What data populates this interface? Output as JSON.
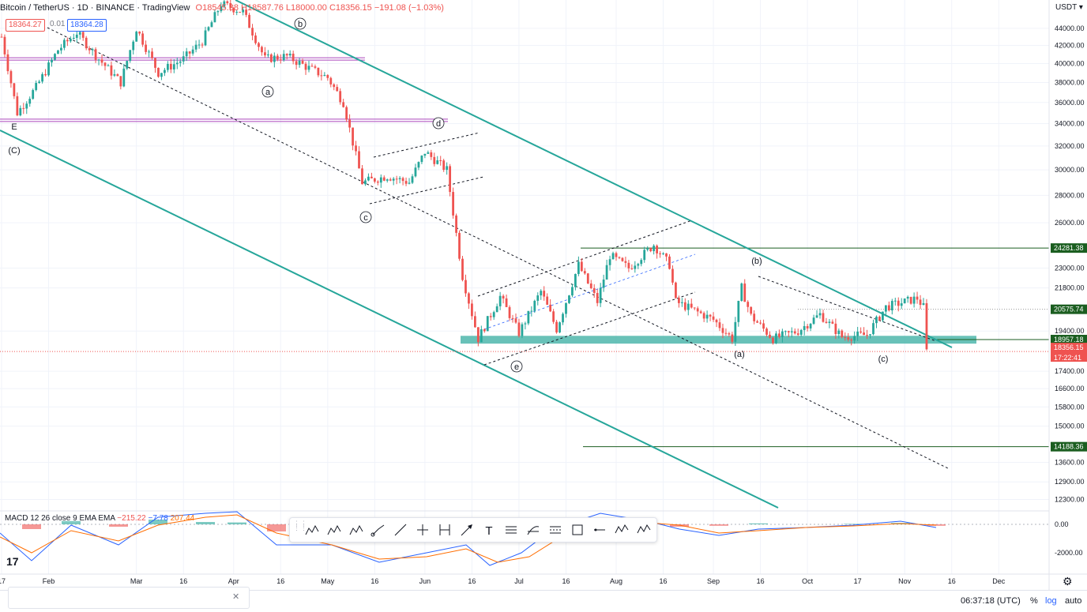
{
  "header": {
    "symbol": "Bitcoin / TetherUS · 1D · BINANCE · TradingView",
    "ohlc": "O18545.38 H18587.76 L18000.00 C18356.15 −191.08 (−1.03%)",
    "bid": "18364.27",
    "spread": "0.01",
    "ask": "18364.28"
  },
  "price_axis": {
    "currency": "USDT",
    "ticks": [
      "44000.00",
      "42000.00",
      "40000.00",
      "38000.00",
      "36000.00",
      "34000.00",
      "32000.00",
      "30000.00",
      "28000.00",
      "26000.00",
      "23000.00",
      "21800.00",
      "19400.00",
      "17400.00",
      "16600.00",
      "15800.00",
      "15000.00",
      "13600.00",
      "12900.00",
      "12300.00"
    ],
    "labels": [
      {
        "text": "24281.38",
        "color": "#1b5e20"
      },
      {
        "text": "20575.74",
        "color": "#1b5e20"
      },
      {
        "text": "18957.18",
        "color": "#1b5e20"
      },
      {
        "text": "18356.15",
        "color": "#ef5350"
      },
      {
        "text": "17:22:41",
        "color": "#ef5350"
      },
      {
        "text": "14188.36",
        "color": "#1b5e20"
      }
    ]
  },
  "macd_axis": {
    "ticks": [
      "0.00",
      "-2000.00"
    ]
  },
  "time_axis": {
    "labels": [
      "17",
      "Feb",
      "Mar",
      "16",
      "Apr",
      "16",
      "May",
      "16",
      "Jun",
      "16",
      "Jul",
      "16",
      "Aug",
      "16",
      "Sep",
      "16",
      "Oct",
      "17",
      "Nov",
      "16",
      "Dec"
    ]
  },
  "wave_labels": [
    "E",
    "(C)",
    "b",
    "a",
    "d",
    "c",
    "e",
    "(b)",
    "(a)",
    "(c)"
  ],
  "macd": {
    "title": "MACD 12 26 close 9 EMA EMA",
    "v1": "−215.22",
    "v2": "−7.78",
    "v3": "207.44"
  },
  "footer": {
    "time": "06:37:18 (UTC)",
    "percent": "%",
    "log": "log",
    "auto": "auto"
  },
  "toolbar": {
    "tools": [
      "pattern-ae-icon",
      "pattern-ac-icon",
      "pattern-15-icon",
      "trend-angle-icon",
      "trend-line-icon",
      "horizontal-ray-icon",
      "price-range-icon",
      "arrow-icon",
      "text-icon",
      "parallel-channel-icon",
      "fib-icon",
      "regression-icon",
      "rectangle-icon",
      "horizontal-line-icon",
      "pattern-wz-icon",
      "pattern-wy-icon"
    ]
  },
  "chart_data": {
    "type": "candlestick",
    "title": "Bitcoin / TetherUS · 1D · BINANCE",
    "ylabel": "USDT",
    "y_scale": "log",
    "ylim": [
      11900,
      47500
    ],
    "x_range": [
      "2022-01-17",
      "2022-12-10"
    ],
    "close_path": [
      [
        "2022-01-17",
        43000
      ],
      [
        "2022-01-22",
        35000
      ],
      [
        "2022-01-28",
        37500
      ],
      [
        "2022-02-04",
        41500
      ],
      [
        "2022-02-10",
        43500
      ],
      [
        "2022-02-17",
        40500
      ],
      [
        "2022-02-24",
        38000
      ],
      [
        "2022-03-01",
        44000
      ],
      [
        "2022-03-08",
        39000
      ],
      [
        "2022-03-16",
        40500
      ],
      [
        "2022-03-22",
        42500
      ],
      [
        "2022-03-28",
        47000
      ],
      [
        "2022-04-04",
        46000
      ],
      [
        "2022-04-11",
        40500
      ],
      [
        "2022-04-18",
        40800
      ],
      [
        "2022-04-25",
        39500
      ],
      [
        "2022-05-01",
        38500
      ],
      [
        "2022-05-06",
        36000
      ],
      [
        "2022-05-12",
        29000
      ],
      [
        "2022-05-20",
        29500
      ],
      [
        "2022-05-27",
        29000
      ],
      [
        "2022-06-01",
        31500
      ],
      [
        "2022-06-08",
        30000
      ],
      [
        "2022-06-13",
        22500
      ],
      [
        "2022-06-18",
        19000
      ],
      [
        "2022-06-25",
        21300
      ],
      [
        "2022-07-01",
        19300
      ],
      [
        "2022-07-08",
        21600
      ],
      [
        "2022-07-13",
        19500
      ],
      [
        "2022-07-20",
        23200
      ],
      [
        "2022-07-26",
        21000
      ],
      [
        "2022-07-30",
        23800
      ],
      [
        "2022-08-05",
        23000
      ],
      [
        "2022-08-13",
        24500
      ],
      [
        "2022-08-18",
        23200
      ],
      [
        "2022-08-20",
        21000
      ],
      [
        "2022-08-26",
        20500
      ],
      [
        "2022-09-01",
        20000
      ],
      [
        "2022-09-07",
        19000
      ],
      [
        "2022-09-10",
        21800
      ],
      [
        "2022-09-13",
        20200
      ],
      [
        "2022-09-20",
        19000
      ],
      [
        "2022-09-28",
        19400
      ],
      [
        "2022-10-05",
        20300
      ],
      [
        "2022-10-12",
        19100
      ],
      [
        "2022-10-20",
        19200
      ],
      [
        "2022-10-26",
        20700
      ],
      [
        "2022-11-05",
        21200
      ],
      [
        "2022-11-07",
        20700
      ],
      [
        "2022-11-08",
        18356
      ]
    ],
    "horizontal_levels": [
      24281.38,
      20575.74,
      18957.18,
      14188.36
    ],
    "support_zone": [
      18750,
      19150
    ],
    "magenta_levels": [
      40500,
      34300
    ],
    "macd_series": [
      "MACD",
      "Signal",
      "Histogram"
    ]
  }
}
